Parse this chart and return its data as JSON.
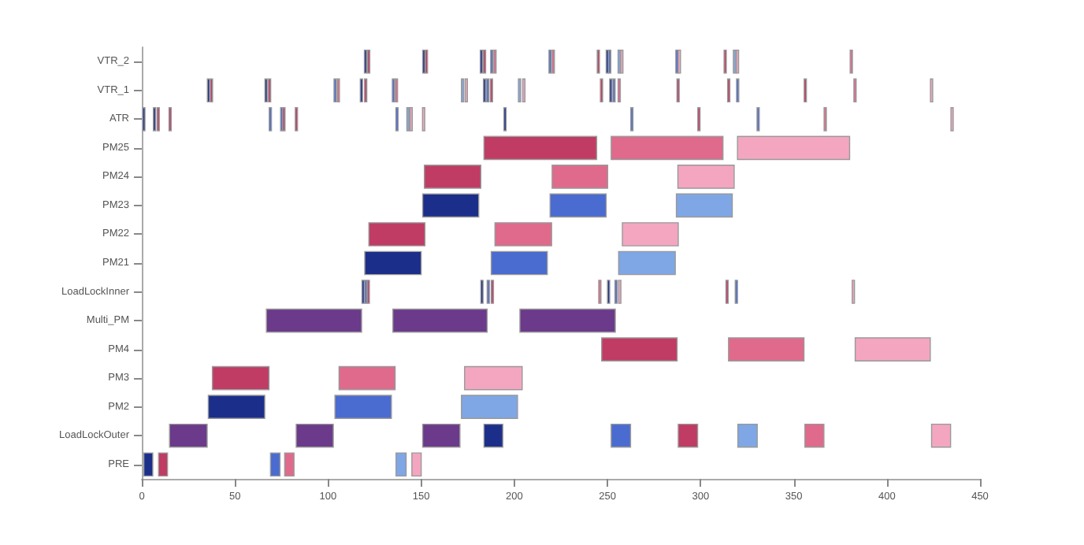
{
  "chart_data": {
    "type": "bar",
    "orientation": "horizontal",
    "categories": [
      "VTR_2",
      "VTR_1",
      "ATR",
      "PM25",
      "PM24",
      "PM23",
      "PM22",
      "PM21",
      "LoadLockInner",
      "Multi_PM",
      "PM4",
      "PM3",
      "PM2",
      "LoadLockOuter",
      "PRE"
    ],
    "xlim": [
      0,
      450
    ],
    "xticks": [
      0,
      50,
      100,
      150,
      200,
      250,
      300,
      350,
      400,
      450
    ],
    "series": [
      {
        "base": [
          119.5,
          35.2,
          0.5,
          183.7,
          151.7,
          150.8,
          121.9,
          119.7,
          118.2,
          66.9,
          246.9,
          37.9,
          35.7,
          14.9,
          1.1
        ],
        "values": [
          1.2,
          1.2,
          1.2,
          60.5,
          30.3,
          30.1,
          30.1,
          30.3,
          1.2,
          51.1,
          40.5,
          30.4,
          30.3,
          20.2,
          4.8
        ],
        "colors": [
          "#1b2f8a",
          "#1b2f8a",
          "#1b2f8a",
          "#c03c64",
          "#c03c64",
          "#1b2f8a",
          "#c03c64",
          "#1b2f8a",
          "#1b2f8a",
          "#6b3a8a",
          "#c03c64",
          "#c03c64",
          "#1b2f8a",
          "#6b3a8a",
          "#1b2f8a"
        ]
      },
      {
        "base": [
          121.2,
          36.8,
          6.2,
          252,
          220.3,
          219.2,
          189.6,
          187.6,
          119.7,
          134.8,
          315,
          105.9,
          103.7,
          82.9,
          9
        ],
        "values": [
          1.2,
          1.2,
          1.2,
          60,
          29.8,
          30.1,
          30.4,
          30.1,
          1.2,
          50.6,
          40.5,
          30.1,
          30.3,
          19.9,
          4.8
        ],
        "colors": [
          "#c03c64",
          "#c03c64",
          "#1b2f8a",
          "#e06a8c",
          "#e06a8c",
          "#4a6bd0",
          "#e06a8c",
          "#4a6bd0",
          "#4a6bd0",
          "#6b3a8a",
          "#e06a8c",
          "#e06a8c",
          "#4a6bd0",
          "#6b3a8a",
          "#c03c64"
        ]
      },
      {
        "base": [
          150.8,
          66.1,
          8.2,
          319.8,
          287.8,
          287,
          258,
          256,
          121,
          203,
          383,
          173.3,
          171.6,
          150.8,
          69.1
        ],
        "values": [
          1.2,
          1.2,
          1.2,
          60.2,
          30.2,
          30,
          30,
          30.4,
          1.2,
          51.2,
          40.3,
          30.9,
          30.1,
          20,
          5.1
        ],
        "colors": [
          "#1b2f8a",
          "#1b2f8a",
          "#c03c64",
          "#f4a6c0",
          "#f4a6c0",
          "#7fa7e6",
          "#f4a6c0",
          "#7fa7e6",
          "#c03c64",
          "#6b3a8a",
          "#f4a6c0",
          "#f4a6c0",
          "#7fa7e6",
          "#6b3a8a",
          "#4a6bd0"
        ]
      },
      {
        "base": [
          152.2,
          68,
          14.6,
          null,
          null,
          null,
          null,
          null,
          182,
          null,
          null,
          null,
          null,
          183.7,
          76.7
        ],
        "values": [
          1.2,
          1.2,
          1.2,
          null,
          null,
          null,
          null,
          null,
          1.2,
          null,
          null,
          null,
          null,
          10.1,
          5
        ],
        "colors": [
          "#c03c64",
          "#c03c64",
          "#c03c64",
          null,
          null,
          null,
          null,
          null,
          "#1b2f8a",
          null,
          null,
          null,
          null,
          "#1b2f8a",
          "#e06a8c"
        ]
      },
      {
        "base": [
          181.7,
          103.2,
          68.4,
          null,
          null,
          null,
          null,
          null,
          185.4,
          null,
          null,
          null,
          null,
          252,
          136.5
        ],
        "values": [
          1.2,
          1.2,
          1.2,
          null,
          null,
          null,
          null,
          null,
          1.2,
          null,
          null,
          null,
          null,
          10.4,
          5.4
        ],
        "colors": [
          "#1b2f8a",
          "#4a6bd0",
          "#4a6bd0",
          null,
          null,
          null,
          null,
          null,
          "#4a6bd0",
          null,
          null,
          null,
          null,
          "#4a6bd0",
          "#7fa7e6"
        ]
      },
      {
        "base": [
          183.4,
          104.9,
          74.5,
          null,
          null,
          null,
          null,
          null,
          187.6,
          null,
          null,
          null,
          null,
          288,
          145
        ],
        "values": [
          1.2,
          1.2,
          1.2,
          null,
          null,
          null,
          null,
          null,
          1.2,
          null,
          null,
          null,
          null,
          10.4,
          5
        ],
        "colors": [
          "#c03c64",
          "#e06a8c",
          "#4a6bd0",
          null,
          null,
          null,
          null,
          null,
          "#c03c64",
          null,
          null,
          null,
          null,
          "#c03c64",
          "#f4a6c0"
        ]
      },
      {
        "base": [
          187.3,
          117.3,
          75.7,
          null,
          null,
          null,
          null,
          null,
          245.3,
          null,
          null,
          null,
          null,
          320,
          null
        ],
        "values": [
          1.2,
          1.2,
          1.2,
          null,
          null,
          null,
          null,
          null,
          1.2,
          null,
          null,
          null,
          null,
          10.4,
          null
        ],
        "colors": [
          "#4a6bd0",
          "#1b2f8a",
          "#c03c64",
          null,
          null,
          null,
          null,
          null,
          "#e06a8c",
          null,
          null,
          null,
          null,
          "#7fa7e6",
          null
        ]
      },
      {
        "base": [
          189,
          119.6,
          82.4,
          null,
          null,
          null,
          null,
          null,
          250,
          null,
          null,
          null,
          null,
          356,
          null
        ],
        "values": [
          1.2,
          1.2,
          1.2,
          null,
          null,
          null,
          null,
          null,
          1.2,
          null,
          null,
          null,
          null,
          10.2,
          null
        ],
        "colors": [
          "#e06a8c",
          "#c03c64",
          "#c03c64",
          null,
          null,
          null,
          null,
          null,
          "#1b2f8a",
          null,
          null,
          null,
          null,
          "#e06a8c",
          null
        ]
      },
      {
        "base": [
          218.6,
          134.5,
          136.4,
          null,
          null,
          null,
          null,
          null,
          254,
          null,
          null,
          null,
          null,
          424,
          null
        ],
        "values": [
          1.2,
          1.2,
          1.2,
          null,
          null,
          null,
          null,
          null,
          1.2,
          null,
          null,
          null,
          null,
          10.2,
          null
        ],
        "colors": [
          "#4a6bd0",
          "#4a6bd0",
          "#4a6bd0",
          null,
          null,
          null,
          null,
          null,
          "#4a6bd0",
          null,
          null,
          null,
          null,
          "#f4a6c0",
          null
        ]
      },
      {
        "base": [
          220.3,
          136.1,
          142.3,
          null,
          null,
          null,
          null,
          null,
          256,
          null,
          null,
          null,
          null,
          null,
          null
        ],
        "values": [
          1.2,
          1.2,
          1.2,
          null,
          null,
          null,
          null,
          null,
          1.2,
          null,
          null,
          null,
          null,
          null,
          null
        ],
        "colors": [
          "#e06a8c",
          "#e06a8c",
          "#7fa7e6",
          null,
          null,
          null,
          null,
          null,
          "#f4a6c0",
          null,
          null,
          null,
          null,
          null,
          null
        ]
      },
      {
        "base": [
          244.5,
          171.6,
          144,
          null,
          null,
          null,
          null,
          null,
          313.6,
          null,
          null,
          null,
          null,
          null,
          null
        ],
        "values": [
          1.2,
          1.2,
          1.2,
          null,
          null,
          null,
          null,
          null,
          1.2,
          null,
          null,
          null,
          null,
          null,
          null
        ],
        "colors": [
          "#c03c64",
          "#7fa7e6",
          "#f4a6c0",
          null,
          null,
          null,
          null,
          null,
          "#c03c64",
          null,
          null,
          null,
          null,
          null,
          null
        ]
      },
      {
        "base": [
          249.3,
          173.6,
          150.7,
          null,
          null,
          null,
          null,
          null,
          318.6,
          null,
          null,
          null,
          null,
          null,
          null
        ],
        "values": [
          1.2,
          1.2,
          1.2,
          null,
          null,
          null,
          null,
          null,
          1.2,
          null,
          null,
          null,
          null,
          null,
          null
        ],
        "colors": [
          "#1b2f8a",
          "#f4a6c0",
          "#f4a6c0",
          null,
          null,
          null,
          null,
          null,
          "#4a6bd0",
          null,
          null,
          null,
          null,
          null,
          null
        ]
      },
      {
        "base": [
          250.6,
          183.4,
          194.4,
          null,
          null,
          null,
          null,
          null,
          381.4,
          null,
          null,
          null,
          null,
          null,
          null
        ],
        "values": [
          1.2,
          1.2,
          1.2,
          null,
          null,
          null,
          null,
          null,
          1.2,
          null,
          null,
          null,
          null,
          null,
          null
        ],
        "colors": [
          "#4a6bd0",
          "#1b2f8a",
          "#1b2f8a",
          null,
          null,
          null,
          null,
          null,
          "#f4a6c0",
          null,
          null,
          null,
          null,
          null,
          null
        ]
      },
      {
        "base": [
          255.7,
          185.1,
          262.5,
          null,
          null,
          null,
          null,
          null,
          null,
          null,
          null,
          null,
          null,
          null,
          null
        ],
        "values": [
          1.2,
          1.2,
          1.2,
          null,
          null,
          null,
          null,
          null,
          null,
          null,
          null,
          null,
          null,
          null,
          null
        ],
        "colors": [
          "#7fa7e6",
          "#4a6bd0",
          "#4a6bd0",
          null,
          null,
          null,
          null,
          null,
          null,
          null,
          null,
          null,
          null,
          null,
          null
        ]
      },
      {
        "base": [
          257.1,
          187.1,
          298.5,
          null,
          null,
          null,
          null,
          null,
          null,
          null,
          null,
          null,
          null,
          null,
          null
        ],
        "values": [
          1.2,
          1.2,
          1.2,
          null,
          null,
          null,
          null,
          null,
          null,
          null,
          null,
          null,
          null,
          null,
          null
        ],
        "colors": [
          "#f4a6c0",
          "#c03c64",
          "#c03c64",
          null,
          null,
          null,
          null,
          null,
          null,
          null,
          null,
          null,
          null,
          null,
          null
        ]
      },
      {
        "base": [
          286.7,
          202.2,
          330.3,
          null,
          null,
          null,
          null,
          null,
          null,
          null,
          null,
          null,
          null,
          null,
          null
        ],
        "values": [
          1.2,
          1.2,
          1.2,
          null,
          null,
          null,
          null,
          null,
          null,
          null,
          null,
          null,
          null,
          null,
          null
        ],
        "colors": [
          "#4a6bd0",
          "#7fa7e6",
          "#4a6bd0",
          null,
          null,
          null,
          null,
          null,
          null,
          null,
          null,
          null,
          null,
          null,
          null
        ]
      },
      {
        "base": [
          288,
          204.5,
          366.3,
          null,
          null,
          null,
          null,
          null,
          null,
          null,
          null,
          null,
          null,
          null,
          null
        ],
        "values": [
          1.2,
          1.2,
          1.2,
          null,
          null,
          null,
          null,
          null,
          null,
          null,
          null,
          null,
          null,
          null,
          null
        ],
        "colors": [
          "#f4a6c0",
          "#f4a6c0",
          "#e06a8c",
          null,
          null,
          null,
          null,
          null,
          null,
          null,
          null,
          null,
          null,
          null,
          null
        ]
      },
      {
        "base": [
          312.6,
          246.2,
          434.4,
          null,
          null,
          null,
          null,
          null,
          null,
          null,
          null,
          null,
          null,
          null,
          null
        ],
        "values": [
          1.2,
          1.2,
          1.2,
          null,
          null,
          null,
          null,
          null,
          null,
          null,
          null,
          null,
          null,
          null,
          null
        ],
        "colors": [
          "#c03c64",
          "#c03c64",
          "#f4a6c0",
          null,
          null,
          null,
          null,
          null,
          null,
          null,
          null,
          null,
          null,
          null,
          null
        ]
      },
      {
        "base": [
          317.6,
          251.2,
          null,
          null,
          null,
          null,
          null,
          null,
          null,
          null,
          null,
          null,
          null,
          null,
          null
        ],
        "values": [
          1.2,
          1.2,
          null,
          null,
          null,
          null,
          null,
          null,
          null,
          null,
          null,
          null,
          null,
          null,
          null
        ],
        "colors": [
          "#7fa7e6",
          "#1b2f8a",
          null,
          null,
          null,
          null,
          null,
          null,
          null,
          null,
          null,
          null,
          null,
          null,
          null
        ]
      },
      {
        "base": [
          319.2,
          252.9,
          null,
          null,
          null,
          null,
          null,
          null,
          null,
          null,
          null,
          null,
          null,
          null,
          null
        ],
        "values": [
          1.2,
          1.2,
          null,
          null,
          null,
          null,
          null,
          null,
          null,
          null,
          null,
          null,
          null,
          null,
          null
        ],
        "colors": [
          "#f4a6c0",
          "#4a6bd0",
          null,
          null,
          null,
          null,
          null,
          null,
          null,
          null,
          null,
          null,
          null,
          null,
          null
        ]
      },
      {
        "base": [
          380.3,
          255.7,
          null,
          null,
          null,
          null,
          null,
          null,
          null,
          null,
          null,
          null,
          null,
          null,
          null
        ],
        "values": [
          1.2,
          1.2,
          null,
          null,
          null,
          null,
          null,
          null,
          null,
          null,
          null,
          null,
          null,
          null,
          null
        ],
        "colors": [
          "#e06a8c",
          "#e06a8c",
          null,
          null,
          null,
          null,
          null,
          null,
          null,
          null,
          null,
          null,
          null,
          null,
          null
        ]
      },
      {
        "base": [
          null,
          287.3,
          null,
          null,
          null,
          null,
          null,
          null,
          null,
          null,
          null,
          null,
          null,
          null,
          null
        ],
        "values": [
          null,
          1.2,
          null,
          null,
          null,
          null,
          null,
          null,
          null,
          null,
          null,
          null,
          null,
          null,
          null
        ],
        "colors": [
          null,
          "#c03c64",
          null,
          null,
          null,
          null,
          null,
          null,
          null,
          null,
          null,
          null,
          null,
          null,
          null
        ]
      },
      {
        "base": [
          null,
          314.5,
          null,
          null,
          null,
          null,
          null,
          null,
          null,
          null,
          null,
          null,
          null,
          null,
          null
        ],
        "values": [
          null,
          1.2,
          null,
          null,
          null,
          null,
          null,
          null,
          null,
          null,
          null,
          null,
          null,
          null,
          null
        ],
        "colors": [
          null,
          "#c03c64",
          null,
          null,
          null,
          null,
          null,
          null,
          null,
          null,
          null,
          null,
          null,
          null,
          null
        ]
      },
      {
        "base": [
          null,
          319.3,
          null,
          null,
          null,
          null,
          null,
          null,
          null,
          null,
          null,
          null,
          null,
          null,
          null
        ],
        "values": [
          null,
          1.2,
          null,
          null,
          null,
          null,
          null,
          null,
          null,
          null,
          null,
          null,
          null,
          null,
          null
        ],
        "colors": [
          null,
          "#4a6bd0",
          null,
          null,
          null,
          null,
          null,
          null,
          null,
          null,
          null,
          null,
          null,
          null,
          null
        ]
      },
      {
        "base": [
          null,
          355.6,
          null,
          null,
          null,
          null,
          null,
          null,
          null,
          null,
          null,
          null,
          null,
          null,
          null
        ],
        "values": [
          null,
          1.2,
          null,
          null,
          null,
          null,
          null,
          null,
          null,
          null,
          null,
          null,
          null,
          null,
          null
        ],
        "colors": [
          null,
          "#c03c64",
          null,
          null,
          null,
          null,
          null,
          null,
          null,
          null,
          null,
          null,
          null,
          null,
          null
        ]
      },
      {
        "base": [
          null,
          382.3,
          null,
          null,
          null,
          null,
          null,
          null,
          null,
          null,
          null,
          null,
          null,
          null,
          null
        ],
        "values": [
          null,
          1.2,
          null,
          null,
          null,
          null,
          null,
          null,
          null,
          null,
          null,
          null,
          null,
          null,
          null
        ],
        "colors": [
          null,
          "#e06a8c",
          null,
          null,
          null,
          null,
          null,
          null,
          null,
          null,
          null,
          null,
          null,
          null,
          null
        ]
      },
      {
        "base": [
          null,
          423.4,
          null,
          null,
          null,
          null,
          null,
          null,
          null,
          null,
          null,
          null,
          null,
          null,
          null
        ],
        "values": [
          null,
          1.2,
          null,
          null,
          null,
          null,
          null,
          null,
          null,
          null,
          null,
          null,
          null,
          null,
          null
        ],
        "colors": [
          null,
          "#f4a6c0",
          null,
          null,
          null,
          null,
          null,
          null,
          null,
          null,
          null,
          null,
          null,
          null,
          null
        ]
      }
    ]
  }
}
